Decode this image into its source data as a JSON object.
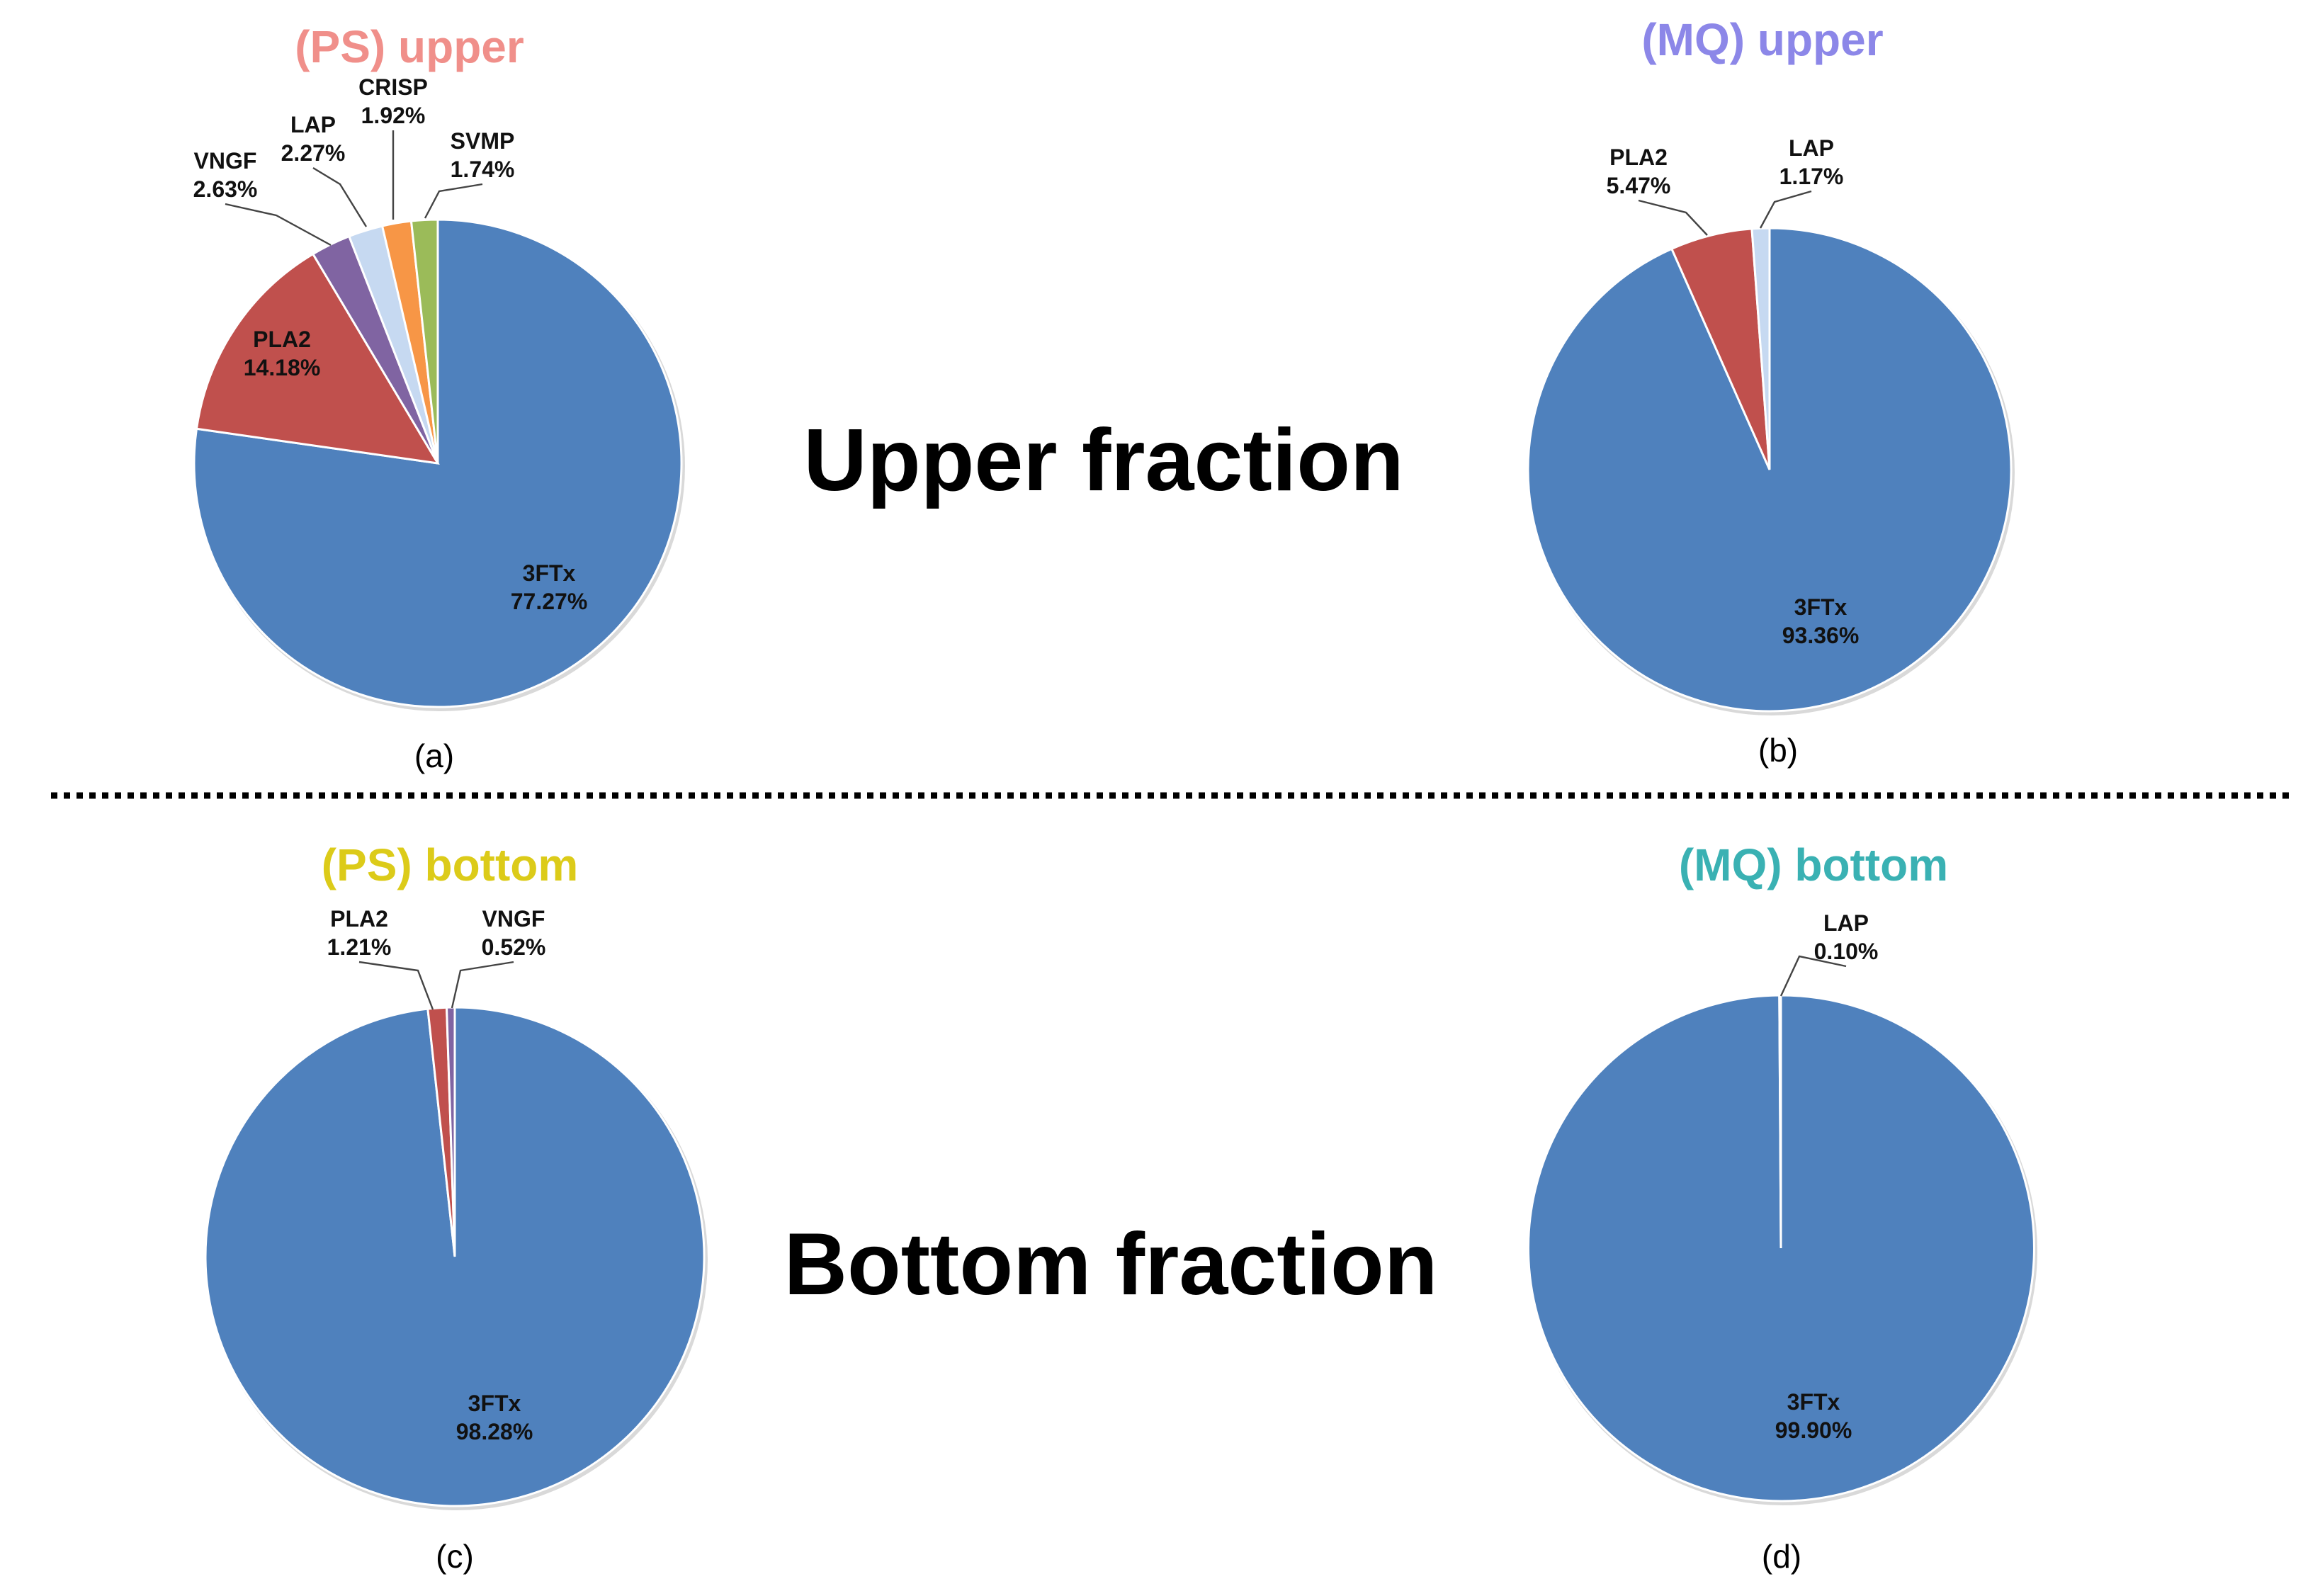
{
  "sections": {
    "upper": "Upper fraction",
    "bottom": "Bottom fraction"
  },
  "colors": {
    "3FTx": "#4f81bd",
    "PLA2": "#c0504d",
    "VNGF": "#8064a2",
    "LAP": "#c6d9f1",
    "CRISP": "#f79646",
    "SVMP": "#9bbb59"
  },
  "chart_data": [
    {
      "type": "pie",
      "id": "a",
      "title": "(PS) upper",
      "title_color": "#f08f8a",
      "panel_label": "(a)",
      "slices": [
        {
          "name": "3FTx",
          "value": 77.27,
          "label": "77.27%"
        },
        {
          "name": "PLA2",
          "value": 14.18,
          "label": "14.18%"
        },
        {
          "name": "VNGF",
          "value": 2.63,
          "label": "2.63%"
        },
        {
          "name": "LAP",
          "value": 2.27,
          "label": "2.27%"
        },
        {
          "name": "CRISP",
          "value": 1.92,
          "label": "1.92%"
        },
        {
          "name": "SVMP",
          "value": 1.74,
          "label": "1.74%"
        }
      ]
    },
    {
      "type": "pie",
      "id": "b",
      "title": "(MQ) upper",
      "title_color": "#8c87e8",
      "panel_label": "(b)",
      "slices": [
        {
          "name": "3FTx",
          "value": 93.36,
          "label": "93.36%"
        },
        {
          "name": "PLA2",
          "value": 5.47,
          "label": "5.47%"
        },
        {
          "name": "LAP",
          "value": 1.17,
          "label": "1.17%"
        }
      ]
    },
    {
      "type": "pie",
      "id": "c",
      "title": "(PS) bottom",
      "title_color": "#dccb19",
      "panel_label": "(c)",
      "slices": [
        {
          "name": "3FTx",
          "value": 98.28,
          "label": "98.28%"
        },
        {
          "name": "PLA2",
          "value": 1.21,
          "label": "1.21%"
        },
        {
          "name": "VNGF",
          "value": 0.52,
          "label": "0.52%"
        }
      ]
    },
    {
      "type": "pie",
      "id": "d",
      "title": "(MQ) bottom",
      "title_color": "#3ab1b3",
      "panel_label": "(d)",
      "slices": [
        {
          "name": "3FTx",
          "value": 99.9,
          "label": "99.90%"
        },
        {
          "name": "LAP",
          "value": 0.1,
          "label": "0.10%"
        }
      ]
    }
  ]
}
